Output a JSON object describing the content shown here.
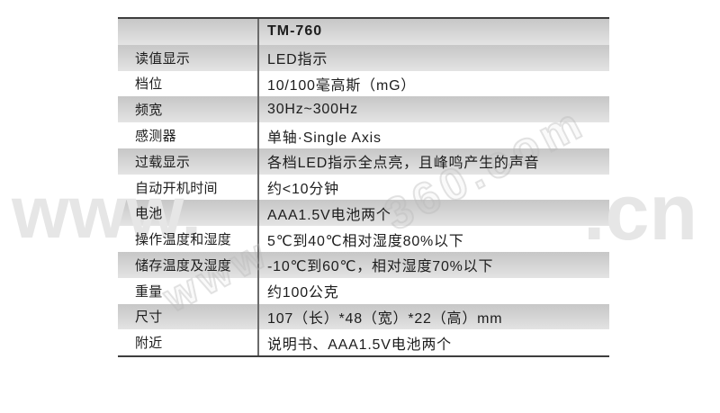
{
  "table": {
    "header": {
      "model": "TM-760"
    },
    "rows": [
      {
        "label": "读值显示",
        "value": "LED指示"
      },
      {
        "label": "档位",
        "value": "10/100毫高斯（mG）"
      },
      {
        "label": "频宽",
        "value": "30Hz~300Hz"
      },
      {
        "label": "感测器",
        "value": "单轴·Single Axis"
      },
      {
        "label": "过载显示",
        "value": "各档LED指示全点亮，且峰鸣产生的声音"
      },
      {
        "label": "自动开机时间",
        "value": "约<10分钟"
      },
      {
        "label": "电池",
        "value": "AAA1.5V电池两个"
      },
      {
        "label": "操作温度和湿度",
        "value": "5℃到40℃相对湿度80%以下"
      },
      {
        "label": "储存温度及湿度",
        "value": "-10℃到60℃，相对湿度70%以下"
      },
      {
        "label": "重量",
        "value": "约100公克"
      },
      {
        "label": "尺寸",
        "value": "107（长）*48（宽）*22（高）mm"
      },
      {
        "label": "附近",
        "value": "说明书、AAA1.5V电池两个"
      }
    ]
  },
  "watermark": {
    "left_fragment": "www.",
    "right_fragment": ".cn",
    "diagonal_fragment_1": "360.com",
    "diagonal_fragment_2": "www"
  },
  "colors": {
    "stripe_dark": "#c7c7c7",
    "stripe_light": "#e3e3e3",
    "table_border": "#3e3e3e",
    "column_divider": "#6b6b6b",
    "text": "#1d1d1d",
    "watermark": "#e6e6e6"
  }
}
